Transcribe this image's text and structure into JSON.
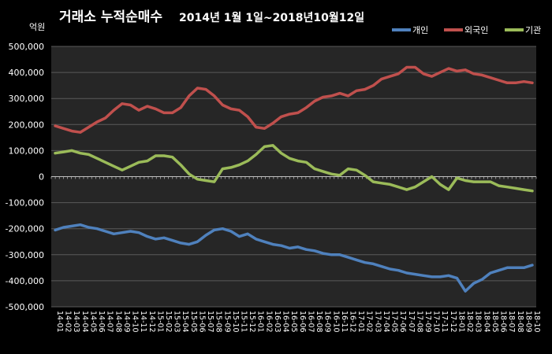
{
  "chart_data": {
    "type": "line",
    "title": "거래소 누적순매수",
    "subtitle": "2014년 1월 1일~2018년10월12일",
    "ylabel": "억원",
    "xlabel": "",
    "ylim": [
      -500000,
      500000
    ],
    "yticks": [
      500000,
      400000,
      300000,
      200000,
      100000,
      0,
      -100000,
      -200000,
      -300000,
      -400000,
      -500000
    ],
    "ytick_labels": [
      "500,000",
      "400,000",
      "300,000",
      "200,000",
      "100,000",
      "0",
      "-100,000",
      "-200,000",
      "-300,000",
      "-400,000",
      "-500,000"
    ],
    "grid": true,
    "legend_position": "top-right",
    "categories": [
      "14-01",
      "14-02",
      "14-03",
      "14-04",
      "14-05",
      "14-06",
      "14-07",
      "14-08",
      "14-09",
      "14-10",
      "14-11",
      "14-12",
      "15-01",
      "15-02",
      "15-03",
      "15-04",
      "15-05",
      "15-06",
      "15-07",
      "15-08",
      "15-09",
      "15-10",
      "15-11",
      "15-12",
      "16-01",
      "16-02",
      "16-03",
      "16-04",
      "16-05",
      "16-06",
      "16-07",
      "16-08",
      "16-09",
      "16-10",
      "16-11",
      "16-12",
      "17-01",
      "17-02",
      "17-03",
      "17-04",
      "17-05",
      "17-06",
      "17-07",
      "17-08",
      "17-09",
      "17-10",
      "17-11",
      "17-12",
      "18-01",
      "18-02",
      "18-03",
      "18-04",
      "18-05",
      "18-06",
      "18-07",
      "18-08",
      "18-09",
      "18-10"
    ],
    "series": [
      {
        "name": "개인",
        "color": "#4f81bd",
        "values": [
          -205000,
          -195000,
          -190000,
          -185000,
          -195000,
          -200000,
          -210000,
          -220000,
          -215000,
          -210000,
          -215000,
          -230000,
          -240000,
          -235000,
          -245000,
          -255000,
          -260000,
          -250000,
          -225000,
          -205000,
          -200000,
          -210000,
          -230000,
          -220000,
          -240000,
          -250000,
          -260000,
          -265000,
          -275000,
          -270000,
          -280000,
          -285000,
          -295000,
          -300000,
          -300000,
          -310000,
          -320000,
          -330000,
          -335000,
          -345000,
          -355000,
          -360000,
          -370000,
          -375000,
          -380000,
          -385000,
          -385000,
          -380000,
          -390000,
          -440000,
          -410000,
          -395000,
          -370000,
          -360000,
          -350000,
          -350000,
          -350000,
          -340000
        ]
      },
      {
        "name": "외국인",
        "color": "#c0504d",
        "values": [
          195000,
          185000,
          175000,
          170000,
          190000,
          210000,
          225000,
          255000,
          280000,
          275000,
          255000,
          270000,
          260000,
          245000,
          245000,
          265000,
          310000,
          340000,
          335000,
          310000,
          275000,
          260000,
          255000,
          230000,
          190000,
          185000,
          205000,
          230000,
          240000,
          245000,
          265000,
          290000,
          305000,
          310000,
          320000,
          310000,
          330000,
          335000,
          350000,
          375000,
          385000,
          395000,
          420000,
          420000,
          395000,
          385000,
          400000,
          415000,
          405000,
          410000,
          395000,
          390000,
          380000,
          370000,
          360000,
          360000,
          365000,
          360000
        ]
      },
      {
        "name": "기관",
        "color": "#9bbb59",
        "values": [
          90000,
          95000,
          100000,
          90000,
          85000,
          70000,
          55000,
          40000,
          25000,
          40000,
          55000,
          60000,
          80000,
          80000,
          75000,
          45000,
          10000,
          -10000,
          -15000,
          -20000,
          30000,
          35000,
          45000,
          60000,
          85000,
          115000,
          120000,
          90000,
          70000,
          60000,
          55000,
          30000,
          20000,
          10000,
          5000,
          30000,
          25000,
          5000,
          -20000,
          -25000,
          -30000,
          -40000,
          -50000,
          -40000,
          -20000,
          0,
          -30000,
          -50000,
          -5000,
          -15000,
          -20000,
          -20000,
          -20000,
          -35000,
          -40000,
          -45000,
          -50000,
          -55000
        ]
      }
    ]
  }
}
